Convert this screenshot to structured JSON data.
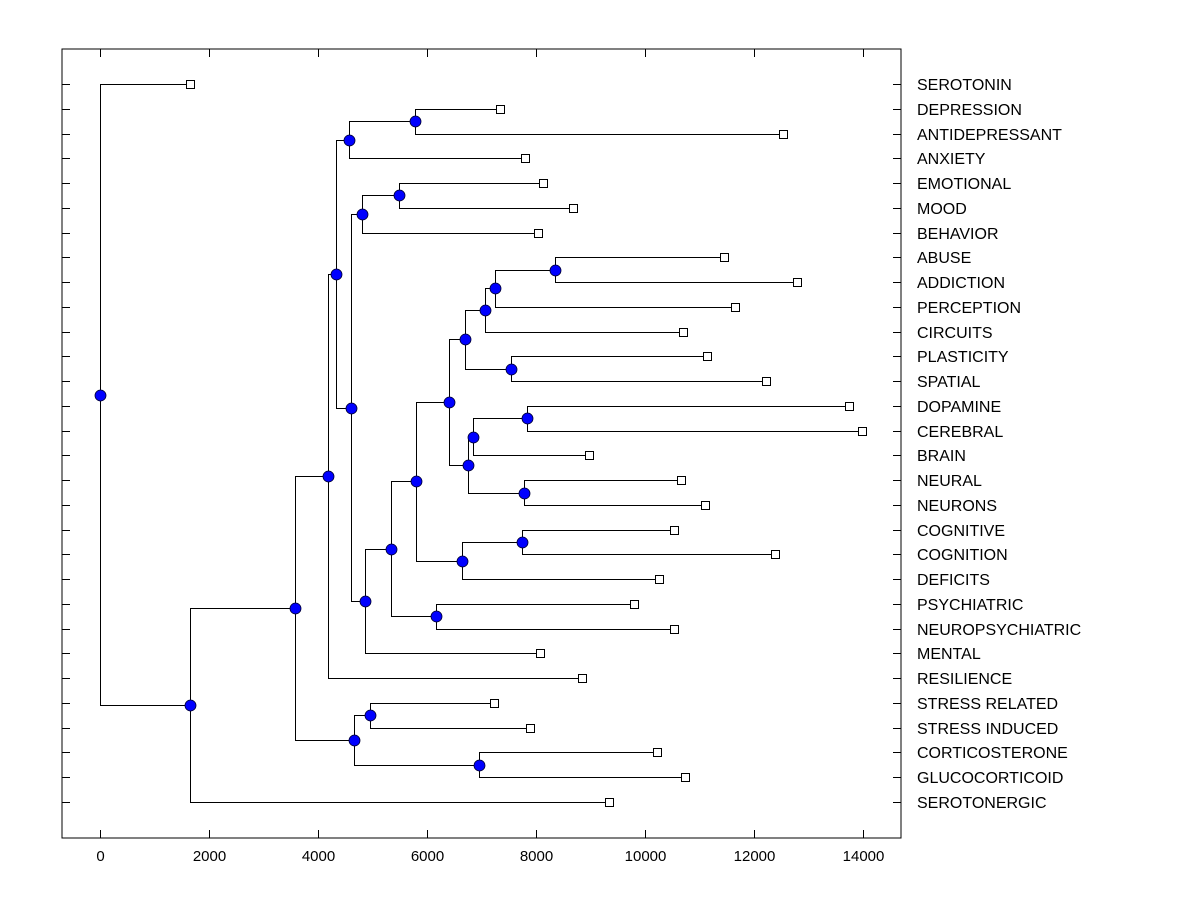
{
  "chart_data": {
    "type": "dendrogram",
    "title": "",
    "xlabel": "",
    "ylabel": "",
    "xlim": [
      -700,
      14700
    ],
    "x_ticks": [
      0,
      2000,
      4000,
      6000,
      8000,
      10000,
      12000,
      14000
    ],
    "x_tick_labels": [
      "0",
      "2000",
      "4000",
      "6000",
      "8000",
      "10000",
      "12000",
      "14000"
    ],
    "grid": false,
    "colors": {
      "node_fill": "#0000FF",
      "node_stroke": "#000033",
      "line": "#000000",
      "leaf_fill": "#FFFFFF"
    },
    "leaves": [
      {
        "label": "SEROTONIN",
        "x": 1650
      },
      {
        "label": "DEPRESSION",
        "x": 7340
      },
      {
        "label": "ANTIDEPRESSANT",
        "x": 12530
      },
      {
        "label": "ANXIETY",
        "x": 7800
      },
      {
        "label": "EMOTIONAL",
        "x": 8130
      },
      {
        "label": "MOOD",
        "x": 8680
      },
      {
        "label": "BEHAVIOR",
        "x": 8040
      },
      {
        "label": "ABUSE",
        "x": 11450
      },
      {
        "label": "ADDICTION",
        "x": 12790
      },
      {
        "label": "PERCEPTION",
        "x": 11650
      },
      {
        "label": "CIRCUITS",
        "x": 10700
      },
      {
        "label": "PLASTICITY",
        "x": 11140
      },
      {
        "label": "SPATIAL",
        "x": 12220
      },
      {
        "label": "DOPAMINE",
        "x": 13740
      },
      {
        "label": "CEREBRAL",
        "x": 13980
      },
      {
        "label": "BRAIN",
        "x": 8970
      },
      {
        "label": "NEURAL",
        "x": 10660
      },
      {
        "label": "NEURONS",
        "x": 11100
      },
      {
        "label": "COGNITIVE",
        "x": 10530
      },
      {
        "label": "COGNITION",
        "x": 12390
      },
      {
        "label": "DEFICITS",
        "x": 10260
      },
      {
        "label": "PSYCHIATRIC",
        "x": 9800
      },
      {
        "label": "NEUROPSYCHIATRIC",
        "x": 10530
      },
      {
        "label": "MENTAL",
        "x": 8070
      },
      {
        "label": "RESILIENCE",
        "x": 8840
      },
      {
        "label": "STRESS RELATED",
        "x": 7230
      },
      {
        "label": "STRESS INDUCED",
        "x": 7890
      },
      {
        "label": "CORTICOSTERONE",
        "x": 10220
      },
      {
        "label": "GLUCOCORTICOID",
        "x": 10730
      },
      {
        "label": "SEROTONERGIC",
        "x": 9340
      }
    ],
    "nodes": [
      {
        "id": "n1",
        "x": 5780,
        "children": [
          "L1",
          "L2"
        ]
      },
      {
        "id": "n2",
        "x": 4570,
        "children": [
          "n1",
          "L3"
        ]
      },
      {
        "id": "n3",
        "x": 5490,
        "children": [
          "L4",
          "L5"
        ]
      },
      {
        "id": "n4",
        "x": 4810,
        "children": [
          "n3",
          "L6"
        ]
      },
      {
        "id": "n5",
        "x": 8350,
        "children": [
          "L7",
          "L8"
        ]
      },
      {
        "id": "n6",
        "x": 7250,
        "children": [
          "n5",
          "L9"
        ]
      },
      {
        "id": "n7",
        "x": 7060,
        "children": [
          "n6",
          "L10"
        ]
      },
      {
        "id": "n8",
        "x": 7540,
        "children": [
          "L11",
          "L12"
        ]
      },
      {
        "id": "n9",
        "x": 6700,
        "children": [
          "n7",
          "n8"
        ]
      },
      {
        "id": "n10",
        "x": 7830,
        "children": [
          "L13",
          "L14"
        ]
      },
      {
        "id": "n11",
        "x": 6840,
        "children": [
          "n10",
          "L15"
        ]
      },
      {
        "id": "n12",
        "x": 7780,
        "children": [
          "L16",
          "L17"
        ]
      },
      {
        "id": "n13",
        "x": 6750,
        "children": [
          "n11",
          "n12"
        ]
      },
      {
        "id": "n14",
        "x": 6400,
        "children": [
          "n9",
          "n13"
        ]
      },
      {
        "id": "n15",
        "x": 7740,
        "children": [
          "L18",
          "L19"
        ]
      },
      {
        "id": "n16",
        "x": 6640,
        "children": [
          "n15",
          "L20"
        ]
      },
      {
        "id": "n17",
        "x": 5800,
        "children": [
          "n14",
          "n16"
        ]
      },
      {
        "id": "n18",
        "x": 6170,
        "children": [
          "L21",
          "L22"
        ]
      },
      {
        "id": "n19",
        "x": 5340,
        "children": [
          "n17",
          "n18"
        ]
      },
      {
        "id": "n20",
        "x": 4860,
        "children": [
          "n19",
          "L23"
        ]
      },
      {
        "id": "n21",
        "x": 4610,
        "children": [
          "n4",
          "n20"
        ]
      },
      {
        "id": "n22",
        "x": 4330,
        "children": [
          "n2",
          "n21"
        ]
      },
      {
        "id": "n23",
        "x": 4180,
        "children": [
          "n22",
          "L24"
        ]
      },
      {
        "id": "n24",
        "x": 4950,
        "children": [
          "L25",
          "L26"
        ]
      },
      {
        "id": "n25",
        "x": 6950,
        "children": [
          "L27",
          "L28"
        ]
      },
      {
        "id": "n26",
        "x": 4660,
        "children": [
          "n24",
          "n25"
        ]
      },
      {
        "id": "n27",
        "x": 3580,
        "children": [
          "n23",
          "n26"
        ]
      },
      {
        "id": "n28",
        "x": 1650,
        "children": [
          "n27",
          "L29"
        ]
      },
      {
        "id": "root",
        "x": 0,
        "children": [
          "L0",
          "n28"
        ]
      }
    ]
  }
}
